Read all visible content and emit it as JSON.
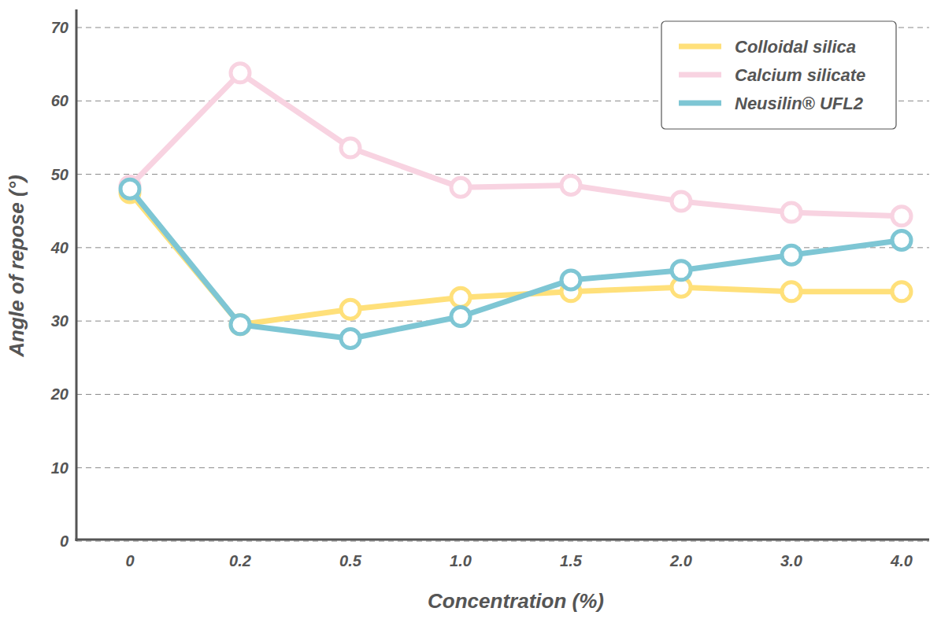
{
  "chart_data": {
    "type": "line",
    "x_label": "Concentration (%)",
    "y_label": "Angle of repose (°)",
    "categories": [
      "0",
      "0.2",
      "0.5",
      "1.0",
      "1.5",
      "2.0",
      "3.0",
      "4.0"
    ],
    "series": [
      {
        "name": "Colloidal silica",
        "color": "#ffe07a",
        "marker": "circle",
        "values": [
          47.5,
          29.5,
          31.6,
          33.2,
          34,
          34.6,
          34,
          34
        ]
      },
      {
        "name": "Calcium silicate",
        "color": "#f8d3e1",
        "marker": "circle",
        "values": [
          48.4,
          63.8,
          53.6,
          48.2,
          48.5,
          46.3,
          44.8,
          44.3
        ]
      },
      {
        "name": "Neusilin® UFL2",
        "color": "#7ec6d4",
        "marker": "circle",
        "values": [
          48,
          29.5,
          27.6,
          30.6,
          35.6,
          36.9,
          39,
          41
        ]
      }
    ],
    "ylim": [
      0,
      70
    ],
    "yticks": [
      0,
      10,
      20,
      30,
      40,
      50,
      60,
      70
    ],
    "grid": true,
    "legend": "top-right"
  }
}
